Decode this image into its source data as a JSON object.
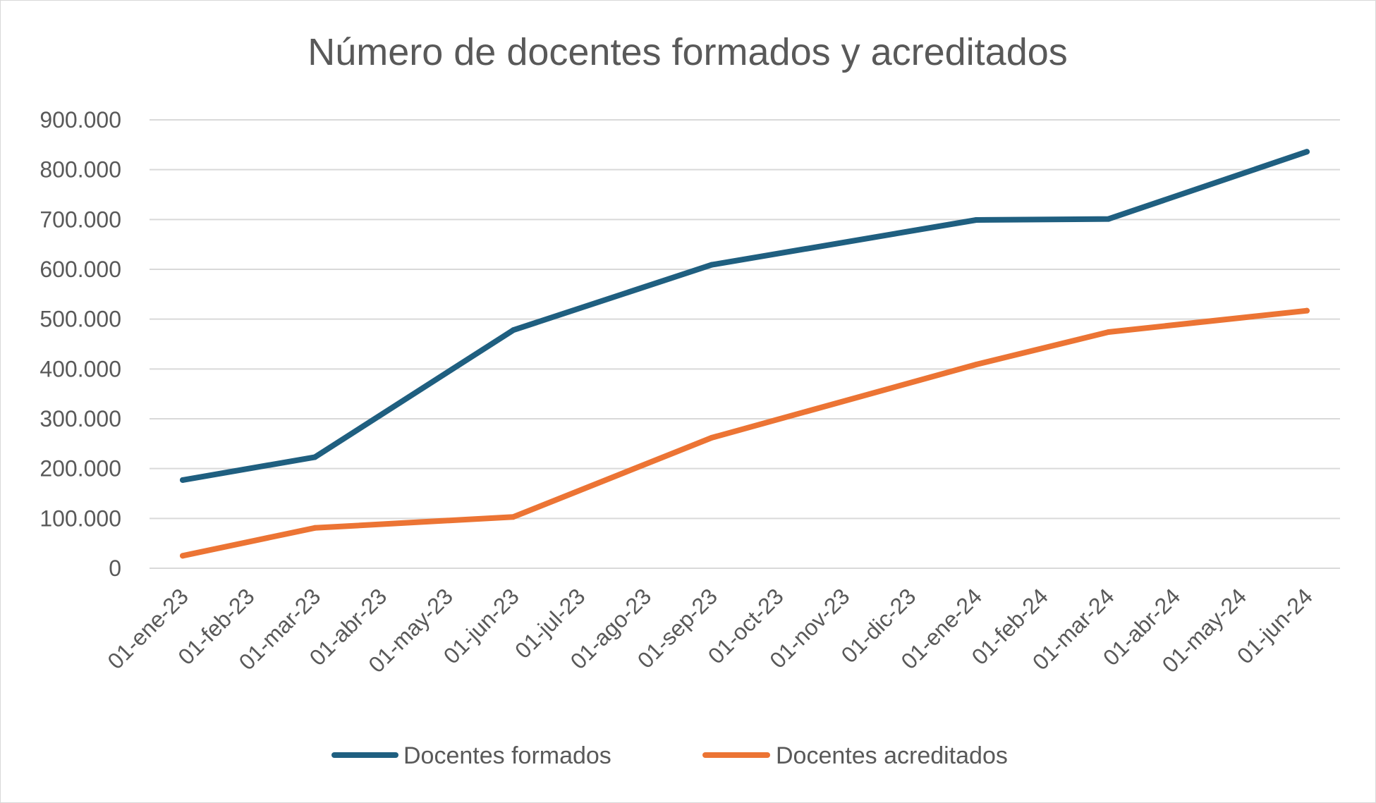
{
  "chart_data": {
    "type": "line",
    "title": "Número de docentes formados y acreditados",
    "xlabel": "",
    "ylabel": "",
    "ylim": [
      0,
      900000
    ],
    "yticks": [
      0,
      100000,
      200000,
      300000,
      400000,
      500000,
      600000,
      700000,
      800000,
      900000
    ],
    "ytick_labels": [
      "0",
      "100.000",
      "200.000",
      "300.000",
      "400.000",
      "500.000",
      "600.000",
      "700.000",
      "800.000",
      "900.000"
    ],
    "categories": [
      "01-ene-23",
      "01-feb-23",
      "01-mar-23",
      "01-abr-23",
      "01-may-23",
      "01-jun-23",
      "01-jul-23",
      "01-ago-23",
      "01-sep-23",
      "01-oct-23",
      "01-nov-23",
      "01-dic-23",
      "01-ene-24",
      "01-feb-24",
      "01-mar-24",
      "01-abr-24",
      "01-may-24",
      "01-jun-24"
    ],
    "grid": true,
    "legend_position": "bottom",
    "series": [
      {
        "name": "Docentes formados",
        "color": "#1f5f80",
        "points": [
          {
            "x": "01-ene-23",
            "y": 177000
          },
          {
            "x": "01-mar-23",
            "y": 223000
          },
          {
            "x": "01-jun-23",
            "y": 478000
          },
          {
            "x": "01-sep-23",
            "y": 609000
          },
          {
            "x": "01-ene-24",
            "y": 699000
          },
          {
            "x": "01-mar-24",
            "y": 701000
          },
          {
            "x": "01-jun-24",
            "y": 836000
          }
        ]
      },
      {
        "name": "Docentes acreditados",
        "color": "#ec7434",
        "points": [
          {
            "x": "01-ene-23",
            "y": 25000
          },
          {
            "x": "01-mar-23",
            "y": 81000
          },
          {
            "x": "01-jun-23",
            "y": 103000
          },
          {
            "x": "01-sep-23",
            "y": 262000
          },
          {
            "x": "01-ene-24",
            "y": 409000
          },
          {
            "x": "01-mar-24",
            "y": 474000
          },
          {
            "x": "01-jun-24",
            "y": 517000
          }
        ]
      }
    ]
  }
}
